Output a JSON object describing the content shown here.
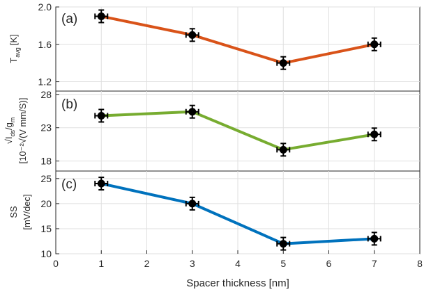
{
  "chart_data": [
    {
      "type": "line",
      "panel_tag": "(a)",
      "ylabel": {
        "main": "T",
        "sub": "avg",
        "unit": "[K]"
      },
      "x": [
        1,
        3,
        5,
        7
      ],
      "values": [
        1.9,
        1.7,
        1.4,
        1.6
      ],
      "color": "#d95319",
      "xlim": [
        0,
        8
      ],
      "ylim": [
        1.1,
        2.0
      ],
      "yticks": [
        "2.0",
        "1.6",
        "1.2"
      ],
      "ytick_values": [
        2.0,
        1.6,
        1.2
      ],
      "grid": true
    },
    {
      "type": "line",
      "panel_tag": "(b)",
      "ylabel": {
        "line1": {
          "pre": "√I",
          "sub1": "ds",
          "mid": "/g",
          "sub2": "m"
        },
        "line2": "[10⁻²√(V mm/S)]"
      },
      "x": [
        1,
        3,
        5,
        7
      ],
      "values": [
        24.8,
        25.4,
        19.7,
        22.0
      ],
      "color": "#77ac30",
      "xlim": [
        0,
        8
      ],
      "ylim": [
        16.5,
        28.5
      ],
      "yticks": [
        "28",
        "23",
        "18"
      ],
      "ytick_values": [
        28,
        23,
        18
      ],
      "grid": true
    },
    {
      "type": "line",
      "panel_tag": "(c)",
      "ylabel": {
        "line1": "SS",
        "line2": "[mV/dec]"
      },
      "x": [
        1,
        3,
        5,
        7
      ],
      "values": [
        24,
        20,
        12,
        13
      ],
      "color": "#0072bd",
      "xlim": [
        0,
        8
      ],
      "ylim": [
        10,
        26.5
      ],
      "yticks": [
        "25",
        "20",
        "15",
        "10"
      ],
      "ytick_values": [
        25,
        20,
        15,
        10
      ],
      "grid": true
    }
  ],
  "xaxis": {
    "label": "Spacer thickness [nm]",
    "ticks": [
      "0",
      "1",
      "2",
      "3",
      "4",
      "5",
      "6",
      "7",
      "8"
    ],
    "tick_values": [
      0,
      1,
      2,
      3,
      4,
      5,
      6,
      7,
      8
    ]
  }
}
